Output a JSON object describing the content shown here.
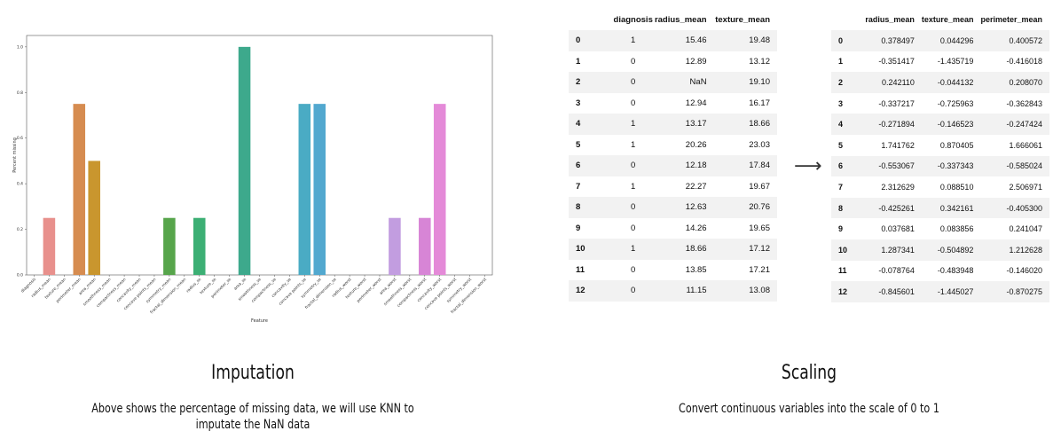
{
  "chart_data": {
    "type": "bar",
    "title": "",
    "xlabel": "Feature",
    "ylabel": "Percent missing",
    "ylim": [
      0,
      1.05
    ],
    "yticks": [
      "0.0",
      "0.2",
      "0.4",
      "0.6",
      "0.8",
      "1.0"
    ],
    "categories": [
      "diagnosis",
      "radius_mean",
      "texture_mean",
      "perimeter_mean",
      "area_mean",
      "smoothness_mean",
      "compactness_mean",
      "concavity_mean",
      "concave points_mean",
      "symmetry_mean",
      "fractal_dimension_mean",
      "radius_se",
      "texture_se",
      "perimeter_se",
      "area_se",
      "smoothness_se",
      "compactness_se",
      "concavity_se",
      "concave points_se",
      "symmetry_se",
      "fractal_dimension_se",
      "radius_worst",
      "texture_worst",
      "perimeter_worst",
      "area_worst",
      "smoothness_worst",
      "compactness_worst",
      "concavity_worst",
      "concave points_worst",
      "symmetry_worst",
      "fractal_dimension_worst"
    ],
    "values": [
      0,
      0.25,
      0,
      0.75,
      0.5,
      0,
      0,
      0,
      0,
      0.25,
      0,
      0.25,
      0,
      0,
      1.0,
      0,
      0,
      0,
      0.75,
      0.75,
      0,
      0,
      0,
      0,
      0.25,
      0,
      0.25,
      0.75,
      0,
      0,
      0
    ],
    "colors": [
      "#e8908c",
      "#e8908c",
      "#dd9560",
      "#d68c50",
      "#c9962e",
      "#b8a13a",
      "#a7a83f",
      "#94ad45",
      "#6fa44b",
      "#57a54b",
      "#3fae5a",
      "#3caf74",
      "#3ab08a",
      "#3aae9d",
      "#3da98c",
      "#3fa6a9",
      "#41a4b5",
      "#45a5c4",
      "#4aabc4",
      "#52a8cf",
      "#66a0dc",
      "#7c98e0",
      "#968fe0",
      "#ab8be0",
      "#c29de0",
      "#cd8fd6",
      "#d785d6",
      "#e48ad8",
      "#e68ac7",
      "#e690b7",
      "#e89aa8"
    ],
    "grid": false
  },
  "table_before": {
    "columns": [
      "diagnosis",
      "radius_mean",
      "texture_mean"
    ],
    "rows": [
      [
        "0",
        "1",
        "15.46",
        "19.48"
      ],
      [
        "1",
        "0",
        "12.89",
        "13.12"
      ],
      [
        "2",
        "0",
        "NaN",
        "19.10"
      ],
      [
        "3",
        "0",
        "12.94",
        "16.17"
      ],
      [
        "4",
        "1",
        "13.17",
        "18.66"
      ],
      [
        "5",
        "1",
        "20.26",
        "23.03"
      ],
      [
        "6",
        "0",
        "12.18",
        "17.84"
      ],
      [
        "7",
        "1",
        "22.27",
        "19.67"
      ],
      [
        "8",
        "0",
        "12.63",
        "20.76"
      ],
      [
        "9",
        "0",
        "14.26",
        "19.65"
      ],
      [
        "10",
        "1",
        "18.66",
        "17.12"
      ],
      [
        "11",
        "0",
        "13.85",
        "17.21"
      ],
      [
        "12",
        "0",
        "11.15",
        "13.08"
      ]
    ]
  },
  "arrow_glyph": "⟶",
  "table_after": {
    "columns": [
      "radius_mean",
      "texture_mean",
      "perimeter_mean"
    ],
    "rows": [
      [
        "0",
        "0.378497",
        "0.044296",
        "0.400572"
      ],
      [
        "1",
        "-0.351417",
        "-1.435719",
        "-0.416018"
      ],
      [
        "2",
        "0.242110",
        "-0.044132",
        "0.208070"
      ],
      [
        "3",
        "-0.337217",
        "-0.725963",
        "-0.362843"
      ],
      [
        "4",
        "-0.271894",
        "-0.146523",
        "-0.247424"
      ],
      [
        "5",
        "1.741762",
        "0.870405",
        "1.666061"
      ],
      [
        "6",
        "-0.553067",
        "-0.337343",
        "-0.585024"
      ],
      [
        "7",
        "2.312629",
        "0.088510",
        "2.506971"
      ],
      [
        "8",
        "-0.425261",
        "0.342161",
        "-0.405300"
      ],
      [
        "9",
        "0.037681",
        "0.083856",
        "0.241047"
      ],
      [
        "10",
        "1.287341",
        "-0.504892",
        "1.212628"
      ],
      [
        "11",
        "-0.078764",
        "-0.483948",
        "-0.146020"
      ],
      [
        "12",
        "-0.845601",
        "-1.445027",
        "-0.870275"
      ]
    ]
  },
  "imputation": {
    "title": "Imputation",
    "text": "Above shows the percentage of missing data, we will use KNN to imputate the NaN data"
  },
  "scaling": {
    "title": "Scaling",
    "text": "Convert continuous variables into the scale of 0 to 1"
  }
}
